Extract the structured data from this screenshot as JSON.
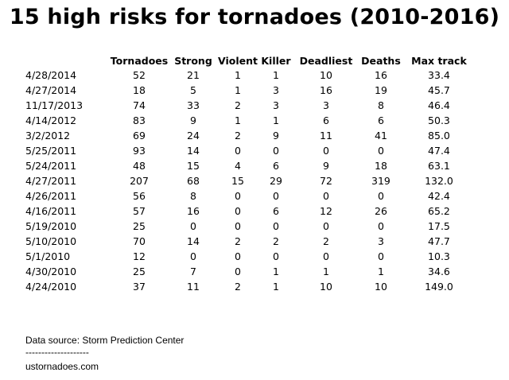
{
  "title": "15 high risks for tornadoes (2010-2016)",
  "chart_data": {
    "type": "table",
    "title": "15 high risks for tornadoes (2010-2016)",
    "columns": [
      "",
      "Tornadoes",
      "Strong",
      "Violent",
      "Killer",
      "Deadliest",
      "Deaths",
      "Max track"
    ],
    "rows": [
      [
        "4/28/2014",
        "52",
        "21",
        "1",
        "1",
        "10",
        "16",
        "33.4"
      ],
      [
        "4/27/2014",
        "18",
        "5",
        "1",
        "3",
        "16",
        "19",
        "45.7"
      ],
      [
        "11/17/2013",
        "74",
        "33",
        "2",
        "3",
        "3",
        "8",
        "46.4"
      ],
      [
        "4/14/2012",
        "83",
        "9",
        "1",
        "1",
        "6",
        "6",
        "50.3"
      ],
      [
        "3/2/2012",
        "69",
        "24",
        "2",
        "9",
        "11",
        "41",
        "85.0"
      ],
      [
        "5/25/2011",
        "93",
        "14",
        "0",
        "0",
        "0",
        "0",
        "47.4"
      ],
      [
        "5/24/2011",
        "48",
        "15",
        "4",
        "6",
        "9",
        "18",
        "63.1"
      ],
      [
        "4/27/2011",
        "207",
        "68",
        "15",
        "29",
        "72",
        "319",
        "132.0"
      ],
      [
        "4/26/2011",
        "56",
        "8",
        "0",
        "0",
        "0",
        "0",
        "42.4"
      ],
      [
        "4/16/2011",
        "57",
        "16",
        "0",
        "6",
        "12",
        "26",
        "65.2"
      ],
      [
        "5/19/2010",
        "25",
        "0",
        "0",
        "0",
        "0",
        "0",
        "17.5"
      ],
      [
        "5/10/2010",
        "70",
        "14",
        "2",
        "2",
        "2",
        "3",
        "47.7"
      ],
      [
        "5/1/2010",
        "12",
        "0",
        "0",
        "0",
        "0",
        "0",
        "10.3"
      ],
      [
        "4/30/2010",
        "25",
        "7",
        "0",
        "1",
        "1",
        "1",
        "34.6"
      ],
      [
        "4/24/2010",
        "37",
        "11",
        "2",
        "1",
        "10",
        "10",
        "149.0"
      ]
    ]
  },
  "footer": {
    "source": "Data source: Storm Prediction Center",
    "separator": "--------------------",
    "site": "ustornadoes.com"
  }
}
